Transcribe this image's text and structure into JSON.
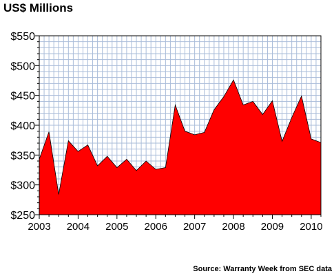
{
  "chart_data": {
    "type": "area",
    "title": "US$ Millions",
    "source": "Source: Warranty Week from SEC data",
    "y_tick_labels": [
      "$250",
      "$300",
      "$350",
      "$400",
      "$450",
      "$500",
      "$550"
    ],
    "y_ticks": [
      250,
      300,
      350,
      400,
      450,
      500,
      550
    ],
    "x_tick_labels": [
      "2003",
      "2004",
      "2005",
      "2006",
      "2007",
      "2008",
      "2009",
      "2010"
    ],
    "x_ticks": [
      2003,
      2004,
      2005,
      2006,
      2007,
      2008,
      2009,
      2010
    ],
    "ylim": [
      250,
      550
    ],
    "xlim": [
      2003,
      2010.25
    ],
    "grid": true,
    "series": [
      {
        "x": [
          2003.0,
          2003.25,
          2003.5,
          2003.75,
          2004.0,
          2004.25,
          2004.5,
          2004.75,
          2005.0,
          2005.25,
          2005.5,
          2005.75,
          2006.0,
          2006.25,
          2006.5,
          2006.75,
          2007.0,
          2007.25,
          2007.5,
          2007.75,
          2008.0,
          2008.25,
          2008.5,
          2008.75,
          2009.0,
          2009.25,
          2009.5,
          2009.75,
          2010.0,
          2010.25
        ],
        "values": [
          343,
          389,
          284,
          374,
          356,
          367,
          332,
          348,
          329,
          343,
          324,
          340,
          326,
          329,
          434,
          390,
          384,
          388,
          426,
          448,
          476,
          434,
          440,
          418,
          441,
          373,
          413,
          449,
          377,
          371
        ]
      }
    ],
    "colors": {
      "fill": "#ff0000",
      "grid": "#a9bcd9",
      "outline": "#000000"
    }
  }
}
